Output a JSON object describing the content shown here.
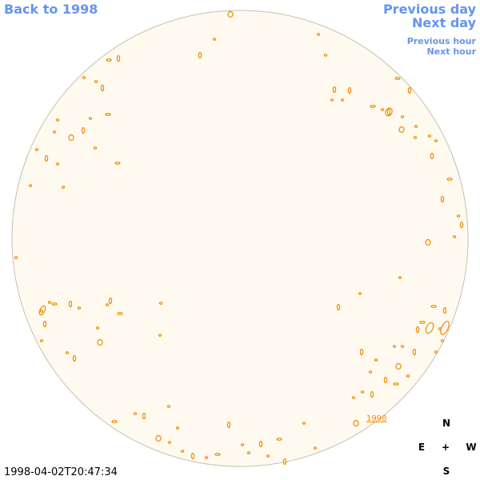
{
  "nav": {
    "back": "Back to 1998",
    "previous_day": "Previous day",
    "next_day": "Next day",
    "previous_hour": "Previous hour",
    "next_hour": "Next hour"
  },
  "disk": {
    "year_label": "1998"
  },
  "compass": {
    "north": "N",
    "east": "E",
    "center": "+",
    "west": "W",
    "south": "S"
  },
  "timestamp": "1998-04-02T20:47:34"
}
